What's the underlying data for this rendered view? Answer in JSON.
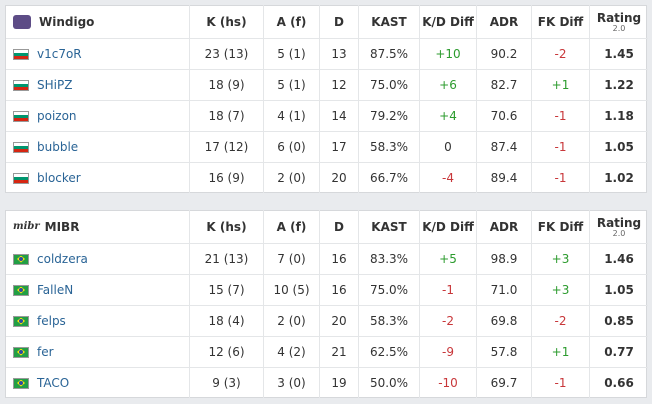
{
  "teams": [
    {
      "name": "Windigo",
      "columns": [
        "K (hs)",
        "A (f)",
        "D",
        "KAST",
        "K/D Diff",
        "ADR",
        "FK Diff",
        "Rating"
      ],
      "rating_sub": "2.0",
      "players": [
        {
          "name": "v1c7oR",
          "cells": [
            "23 (13)",
            "5 (1)",
            "13",
            "87.5%",
            "+10",
            "90.2",
            "-2",
            "1.45"
          ]
        },
        {
          "name": "SHiPZ",
          "cells": [
            "18 (9)",
            "5 (1)",
            "12",
            "75.0%",
            "+6",
            "82.7",
            "+1",
            "1.22"
          ]
        },
        {
          "name": "poizon",
          "cells": [
            "18 (7)",
            "4 (1)",
            "14",
            "79.2%",
            "+4",
            "70.6",
            "-1",
            "1.18"
          ]
        },
        {
          "name": "bubble",
          "cells": [
            "17 (12)",
            "6 (0)",
            "17",
            "58.3%",
            "0",
            "87.4",
            "-1",
            "1.05"
          ]
        },
        {
          "name": "blocker",
          "cells": [
            "16 (9)",
            "2 (0)",
            "20",
            "66.7%",
            "-4",
            "89.4",
            "-1",
            "1.02"
          ]
        }
      ]
    },
    {
      "name": "MIBR",
      "logo": "mibr",
      "columns": [
        "K (hs)",
        "A (f)",
        "D",
        "KAST",
        "K/D Diff",
        "ADR",
        "FK Diff",
        "Rating"
      ],
      "rating_sub": "2.0",
      "players": [
        {
          "name": "coldzera",
          "cells": [
            "21 (13)",
            "7 (0)",
            "16",
            "83.3%",
            "+5",
            "98.9",
            "+3",
            "1.46"
          ]
        },
        {
          "name": "FalleN",
          "cells": [
            "15 (7)",
            "10 (5)",
            "16",
            "75.0%",
            "-1",
            "71.0",
            "+3",
            "1.05"
          ]
        },
        {
          "name": "felps",
          "cells": [
            "18 (4)",
            "2 (0)",
            "20",
            "58.3%",
            "-2",
            "69.8",
            "-2",
            "0.85"
          ]
        },
        {
          "name": "fer",
          "cells": [
            "12 (6)",
            "4 (2)",
            "21",
            "62.5%",
            "-9",
            "57.8",
            "+1",
            "0.77"
          ]
        },
        {
          "name": "TACO",
          "cells": [
            "9 (3)",
            "3 (0)",
            "19",
            "50.0%",
            "-10",
            "69.7",
            "-1",
            "0.66"
          ]
        }
      ]
    }
  ]
}
